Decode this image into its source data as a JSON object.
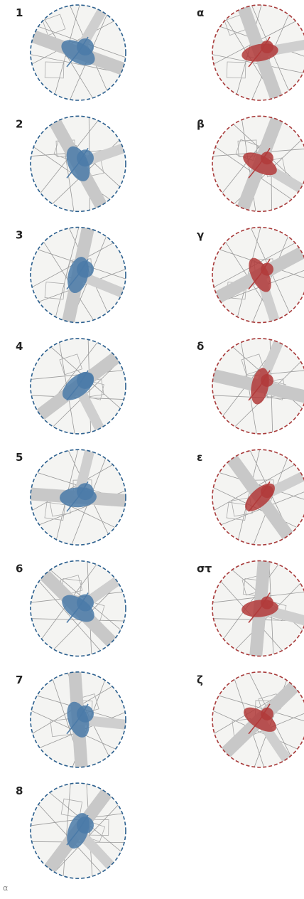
{
  "left": {
    "items": [
      {
        "label": "1"
      },
      {
        "label": "2"
      },
      {
        "label": "3"
      },
      {
        "label": "4"
      },
      {
        "label": "5"
      },
      {
        "label": "6"
      },
      {
        "label": "7"
      },
      {
        "label": "8"
      }
    ]
  },
  "right": {
    "items": [
      {
        "label": "α"
      },
      {
        "label": "β"
      },
      {
        "label": "γ"
      },
      {
        "label": "δ"
      },
      {
        "label": "ε"
      },
      {
        "label": "στ"
      },
      {
        "label": "ζ"
      }
    ]
  },
  "footer": "α"
}
